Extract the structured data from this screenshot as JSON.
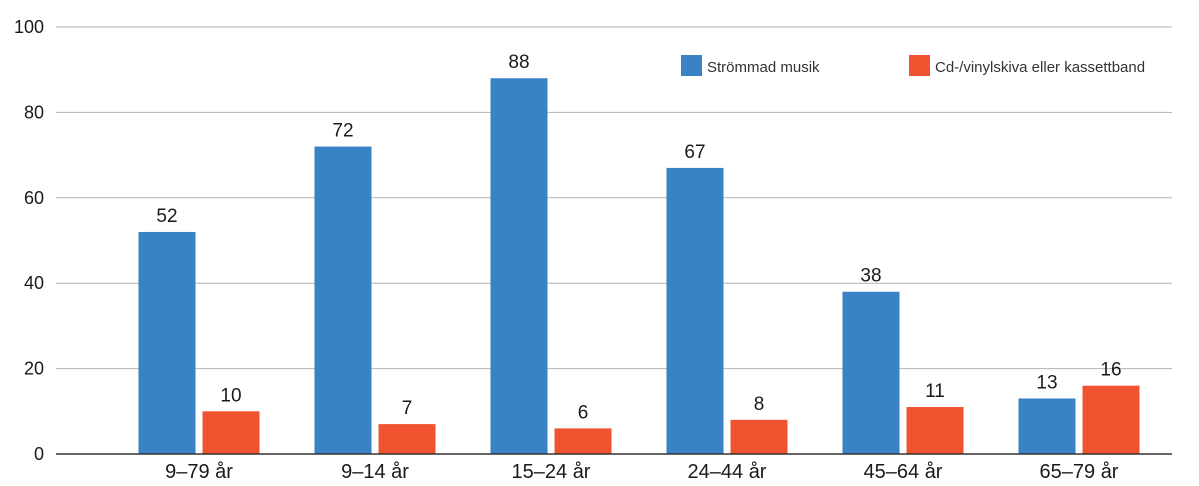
{
  "chart_data": {
    "type": "bar",
    "title": "",
    "xlabel": "",
    "ylabel": "",
    "categories": [
      "9–79 år",
      "9–14 år",
      "15–24 år",
      "24–44 år",
      "45–64 år",
      "65–79 år"
    ],
    "series": [
      {
        "name": "Strömmad musik",
        "color": "#3a82c6",
        "values": [
          52,
          72,
          88,
          67,
          38,
          13
        ]
      },
      {
        "name": "Cd-/vinylskiva eller kassettband",
        "color": "#f05330",
        "values": [
          10,
          7,
          6,
          8,
          11,
          16
        ]
      }
    ],
    "ylim": [
      0,
      100
    ],
    "yticks": [
      0,
      20,
      40,
      60,
      80,
      100
    ],
    "grid": true,
    "legend": "top-right",
    "data_labels": true
  }
}
